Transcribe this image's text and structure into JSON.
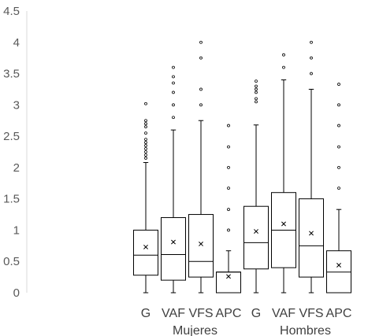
{
  "chart_data": {
    "type": "box",
    "y_ticks": [
      "0",
      "0.5",
      "1",
      "1.5",
      "2",
      "2.5",
      "3",
      "3.5",
      "4",
      "4.5"
    ],
    "ylim": [
      0,
      4.5
    ],
    "grid": false,
    "groups": [
      {
        "name": "Mujeres",
        "boxes": [
          {
            "category": "G",
            "min": 0,
            "q1": 0.28,
            "median": 0.6,
            "q3": 1.0,
            "max": 2.08,
            "mean": 0.73,
            "outliers": [
              2.15,
              2.2,
              2.25,
              2.3,
              2.35,
              2.4,
              2.45,
              2.55,
              2.65,
              2.7,
              2.75,
              3.02
            ]
          },
          {
            "category": "VAF",
            "min": 0,
            "q1": 0.2,
            "median": 0.61,
            "q3": 1.2,
            "max": 2.6,
            "mean": 0.81,
            "outliers": [
              2.8,
              3.0,
              3.2,
              3.35,
              3.45,
              3.6
            ]
          },
          {
            "category": "VFS",
            "min": 0,
            "q1": 0.25,
            "median": 0.5,
            "q3": 1.25,
            "max": 2.75,
            "mean": 0.78,
            "outliers": [
              3.0,
              3.25,
              3.75,
              4.0
            ]
          },
          {
            "category": "APC",
            "min": 0,
            "q1": 0,
            "median": 0.33,
            "q3": 0.33,
            "max": 0.67,
            "mean": 0.26,
            "outliers": [
              1.0,
              1.33,
              1.67,
              2.0,
              2.33,
              2.67
            ]
          }
        ]
      },
      {
        "name": "Hombres",
        "boxes": [
          {
            "category": "G",
            "min": 0,
            "q1": 0.38,
            "median": 0.8,
            "q3": 1.38,
            "max": 2.68,
            "mean": 0.98,
            "outliers": [
              3.05,
              3.1,
              3.2,
              3.25,
              3.3,
              3.38
            ]
          },
          {
            "category": "VAF",
            "min": 0,
            "q1": 0.4,
            "median": 1.0,
            "q3": 1.6,
            "max": 3.4,
            "mean": 1.1,
            "outliers": [
              3.6,
              3.8
            ]
          },
          {
            "category": "VFS",
            "min": 0,
            "q1": 0.25,
            "median": 0.75,
            "q3": 1.5,
            "max": 3.25,
            "mean": 0.95,
            "outliers": [
              3.5,
              3.75,
              4.0
            ]
          },
          {
            "category": "APC",
            "min": 0,
            "q1": 0,
            "median": 0.33,
            "q3": 0.67,
            "max": 1.33,
            "mean": 0.44,
            "outliers": [
              1.67,
              2.0,
              2.33,
              2.67,
              3.0,
              3.33
            ]
          }
        ]
      }
    ]
  }
}
